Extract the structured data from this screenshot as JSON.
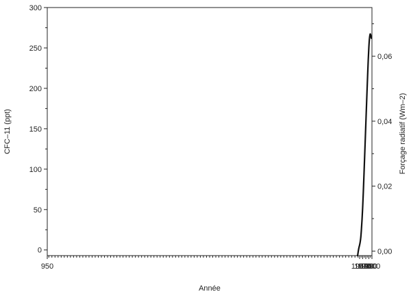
{
  "chart_data": {
    "type": "line",
    "xlabel": "Année",
    "ylabel": "CFC–11 (ppt)",
    "y2label": "Forçage radiatif (Wm–2)",
    "xlim": [
      950,
      2000
    ],
    "ylim": [
      -7,
      300
    ],
    "y2lim": [
      -0.0014,
      0.075
    ],
    "x_ticks": [
      950,
      1960,
      1970,
      1980,
      1990,
      2000
    ],
    "x_tick_labels": [
      "950",
      "1960",
      "1970",
      "1980",
      "1990",
      "2000"
    ],
    "y_ticks": [
      0,
      50,
      100,
      150,
      200,
      250,
      300
    ],
    "y_tick_labels": [
      "0",
      "50",
      "100",
      "150",
      "200",
      "250",
      "300"
    ],
    "y2_ticks": [
      0,
      0.02,
      0.04,
      0.06
    ],
    "y2_tick_labels": [
      "0,00",
      "0,02",
      "0,04",
      "0,06"
    ],
    "grid": false,
    "legend": "none",
    "series": [
      {
        "x": [
          1953,
          1954,
          1956,
          1958,
          1960,
          1962,
          1964,
          1966,
          1968,
          1970,
          1972,
          1974,
          1976,
          1978,
          1980,
          1982,
          1984,
          1986,
          1988,
          1990,
          1992,
          1994,
          1995,
          1996,
          1998
        ],
        "y": [
          -7,
          -6,
          -1,
          3,
          6,
          10,
          16,
          26,
          38,
          53,
          71,
          91,
          112,
          133,
          154,
          175,
          196,
          216,
          235,
          251,
          262,
          267,
          267,
          266,
          262
        ]
      }
    ]
  }
}
